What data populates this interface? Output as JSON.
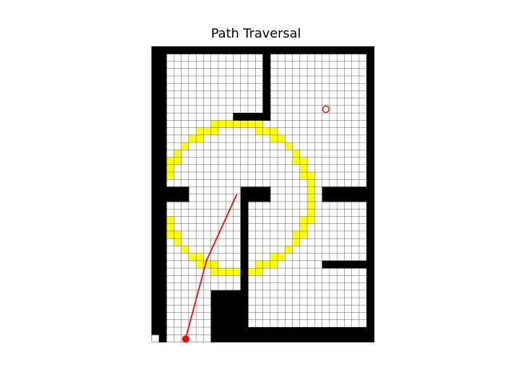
{
  "title": "Path Traversal",
  "colors": {
    "wall": "#000000",
    "free": "#ffffff",
    "grid": "#666666",
    "coverage": "#ffff00",
    "path": "#ff0000",
    "goal": "#ff0000",
    "start": "#ff0000"
  },
  "map": {
    "cols": 30,
    "rows": 40,
    "walls": [
      {
        "c0": 0,
        "r0": 0,
        "c1": 29,
        "r1": 0
      },
      {
        "c0": 0,
        "r0": 0,
        "c1": 1,
        "r1": 39
      },
      {
        "c0": 29,
        "r0": 0,
        "c1": 29,
        "r1": 39
      },
      {
        "c0": 15,
        "r0": 39,
        "c1": 29,
        "r1": 39
      },
      {
        "c0": 1,
        "r0": 39,
        "c1": 1,
        "r1": 39
      },
      {
        "c0": 15,
        "r0": 0,
        "c1": 15,
        "r1": 9
      },
      {
        "c0": 11,
        "r0": 9,
        "c1": 14,
        "r1": 9
      },
      {
        "c0": 2,
        "r0": 19,
        "c1": 4,
        "r1": 20
      },
      {
        "c0": 12,
        "r0": 19,
        "c1": 15,
        "r1": 20
      },
      {
        "c0": 12,
        "r0": 21,
        "c1": 12,
        "r1": 32
      },
      {
        "c0": 8,
        "r0": 33,
        "c1": 12,
        "r1": 39
      },
      {
        "c0": 13,
        "r0": 38,
        "c1": 29,
        "r1": 39
      },
      {
        "c0": 23,
        "r0": 19,
        "c1": 28,
        "r1": 20
      },
      {
        "c0": 23,
        "r0": 29,
        "c1": 28,
        "r1": 29
      }
    ],
    "free_cells": [
      {
        "c": 0,
        "r": 39
      }
    ],
    "coverage_ring": {
      "center_col": 11.5,
      "center_row": 20.5,
      "radius": 10,
      "thickness": 1.05
    },
    "path": [
      {
        "c": 4.6,
        "r": 39.5
      },
      {
        "c": 7.4,
        "r": 29.0
      },
      {
        "c": 11.5,
        "r": 20.0
      }
    ],
    "goal": {
      "c": 23.5,
      "r": 8.5
    },
    "start": {
      "c": 4.6,
      "r": 39.6
    }
  }
}
